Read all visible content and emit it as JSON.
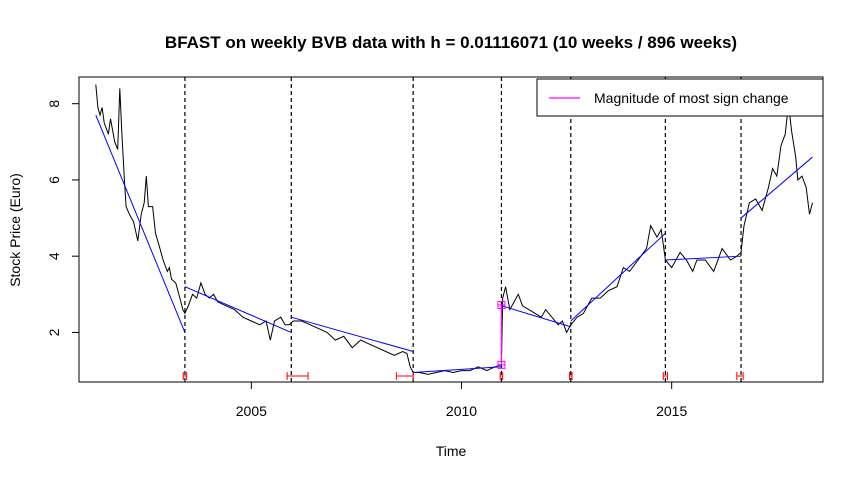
{
  "chart_data": {
    "type": "line",
    "title": "BFAST on weekly BVB data with h = 0.01116071 (10 weeks / 896 weeks)",
    "xlabel": "Time",
    "ylabel": "Stock Price (Euro)",
    "xlim": [
      2000.9,
      2018.6
    ],
    "ylim": [
      0.7,
      8.7
    ],
    "x_ticks": [
      2005,
      2010,
      2015
    ],
    "y_ticks": [
      2,
      4,
      6,
      8
    ],
    "legend": {
      "placement": "top-right",
      "entries": [
        {
          "label": "Magnitude of most sign change",
          "color": "#ff00ff"
        }
      ]
    },
    "colors": {
      "series": "#000000",
      "trend": "#0000ff",
      "breakpoint": "#000000",
      "confidence_interval": "#ff0000",
      "magnitude": "#ff00ff"
    },
    "series": [
      {
        "values": [
          [
            2001.3,
            8.5
          ],
          [
            2001.35,
            7.9
          ],
          [
            2001.4,
            7.7
          ],
          [
            2001.45,
            7.9
          ],
          [
            2001.5,
            7.5
          ],
          [
            2001.6,
            7.2
          ],
          [
            2001.65,
            7.6
          ],
          [
            2001.75,
            7.0
          ],
          [
            2001.82,
            6.8
          ],
          [
            2001.87,
            8.4
          ],
          [
            2001.92,
            7.2
          ],
          [
            2001.98,
            6.0
          ],
          [
            2002.02,
            5.3
          ],
          [
            2002.1,
            5.1
          ],
          [
            2002.2,
            4.9
          ],
          [
            2002.3,
            4.4
          ],
          [
            2002.38,
            5.1
          ],
          [
            2002.45,
            5.4
          ],
          [
            2002.5,
            6.1
          ],
          [
            2002.55,
            5.3
          ],
          [
            2002.65,
            5.3
          ],
          [
            2002.72,
            4.6
          ],
          [
            2002.8,
            4.3
          ],
          [
            2002.9,
            3.9
          ],
          [
            2003.0,
            3.6
          ],
          [
            2003.05,
            3.7
          ],
          [
            2003.1,
            3.4
          ],
          [
            2003.2,
            3.3
          ],
          [
            2003.3,
            2.9
          ],
          [
            2003.37,
            2.6
          ],
          [
            2003.42,
            2.5
          ],
          [
            2003.5,
            2.7
          ],
          [
            2003.6,
            3.0
          ],
          [
            2003.7,
            2.9
          ],
          [
            2003.8,
            3.3
          ],
          [
            2003.9,
            3.0
          ],
          [
            2004.0,
            2.9
          ],
          [
            2004.1,
            3.0
          ],
          [
            2004.2,
            2.8
          ],
          [
            2004.4,
            2.7
          ],
          [
            2004.6,
            2.6
          ],
          [
            2004.8,
            2.4
          ],
          [
            2005.0,
            2.3
          ],
          [
            2005.2,
            2.2
          ],
          [
            2005.35,
            2.3
          ],
          [
            2005.45,
            1.8
          ],
          [
            2005.55,
            2.3
          ],
          [
            2005.7,
            2.4
          ],
          [
            2005.8,
            2.2
          ],
          [
            2005.9,
            2.2
          ],
          [
            2006.0,
            2.3
          ],
          [
            2006.2,
            2.3
          ],
          [
            2006.4,
            2.2
          ],
          [
            2006.6,
            2.1
          ],
          [
            2006.8,
            2.0
          ],
          [
            2007.0,
            1.8
          ],
          [
            2007.2,
            1.9
          ],
          [
            2007.4,
            1.6
          ],
          [
            2007.6,
            1.8
          ],
          [
            2007.8,
            1.7
          ],
          [
            2008.0,
            1.6
          ],
          [
            2008.2,
            1.5
          ],
          [
            2008.4,
            1.4
          ],
          [
            2008.6,
            1.5
          ],
          [
            2008.7,
            1.45
          ],
          [
            2008.78,
            1.1
          ],
          [
            2008.85,
            0.95
          ],
          [
            2009.0,
            0.95
          ],
          [
            2009.2,
            0.9
          ],
          [
            2009.4,
            0.95
          ],
          [
            2009.6,
            1.0
          ],
          [
            2009.8,
            0.95
          ],
          [
            2010.0,
            1.0
          ],
          [
            2010.2,
            1.0
          ],
          [
            2010.4,
            1.1
          ],
          [
            2010.6,
            1.0
          ],
          [
            2010.8,
            1.1
          ],
          [
            2010.95,
            1.15
          ],
          [
            2010.98,
            2.9
          ],
          [
            2011.05,
            3.2
          ],
          [
            2011.15,
            2.6
          ],
          [
            2011.25,
            2.8
          ],
          [
            2011.35,
            3.0
          ],
          [
            2011.45,
            2.7
          ],
          [
            2011.6,
            2.6
          ],
          [
            2011.75,
            2.5
          ],
          [
            2011.9,
            2.4
          ],
          [
            2012.0,
            2.6
          ],
          [
            2012.15,
            2.4
          ],
          [
            2012.3,
            2.2
          ],
          [
            2012.4,
            2.3
          ],
          [
            2012.5,
            2.0
          ],
          [
            2012.6,
            2.2
          ],
          [
            2012.75,
            2.4
          ],
          [
            2012.9,
            2.5
          ],
          [
            2013.1,
            2.9
          ],
          [
            2013.3,
            2.9
          ],
          [
            2013.5,
            3.1
          ],
          [
            2013.7,
            3.2
          ],
          [
            2013.85,
            3.7
          ],
          [
            2014.0,
            3.6
          ],
          [
            2014.2,
            3.9
          ],
          [
            2014.4,
            4.2
          ],
          [
            2014.5,
            4.8
          ],
          [
            2014.65,
            4.5
          ],
          [
            2014.75,
            4.7
          ],
          [
            2014.85,
            3.9
          ],
          [
            2015.0,
            3.7
          ],
          [
            2015.2,
            4.1
          ],
          [
            2015.35,
            3.9
          ],
          [
            2015.5,
            3.6
          ],
          [
            2015.6,
            3.9
          ],
          [
            2015.8,
            3.9
          ],
          [
            2016.0,
            3.6
          ],
          [
            2016.2,
            4.2
          ],
          [
            2016.4,
            3.9
          ],
          [
            2016.55,
            4.0
          ],
          [
            2016.65,
            4.1
          ],
          [
            2016.72,
            4.8
          ],
          [
            2016.85,
            5.4
          ],
          [
            2017.0,
            5.5
          ],
          [
            2017.15,
            5.2
          ],
          [
            2017.3,
            5.8
          ],
          [
            2017.4,
            6.3
          ],
          [
            2017.5,
            6.1
          ],
          [
            2017.6,
            6.9
          ],
          [
            2017.7,
            7.2
          ],
          [
            2017.78,
            8.0
          ],
          [
            2017.85,
            7.3
          ],
          [
            2017.95,
            6.6
          ],
          [
            2018.0,
            6.0
          ],
          [
            2018.1,
            6.1
          ],
          [
            2018.2,
            5.8
          ],
          [
            2018.28,
            5.1
          ],
          [
            2018.35,
            5.4
          ]
        ]
      }
    ],
    "trend_segments": [
      [
        [
          2001.3,
          7.7
        ],
        [
          2003.42,
          2.0
        ]
      ],
      [
        [
          2003.42,
          3.2
        ],
        [
          2005.95,
          2.0
        ]
      ],
      [
        [
          2005.95,
          2.4
        ],
        [
          2008.85,
          1.5
        ]
      ],
      [
        [
          2008.85,
          0.95
        ],
        [
          2010.95,
          1.1
        ]
      ],
      [
        [
          2010.95,
          2.7
        ],
        [
          2012.6,
          2.15
        ]
      ],
      [
        [
          2012.6,
          2.3
        ],
        [
          2014.85,
          4.6
        ]
      ],
      [
        [
          2014.85,
          3.9
        ],
        [
          2016.65,
          4.0
        ]
      ],
      [
        [
          2016.65,
          5.0
        ],
        [
          2018.35,
          6.6
        ]
      ]
    ],
    "breakpoints": [
      2003.42,
      2005.95,
      2008.85,
      2010.95,
      2012.6,
      2014.85,
      2016.65
    ],
    "confidence_intervals": [
      [
        2003.38,
        2003.46
      ],
      [
        2005.85,
        2006.35
      ],
      [
        2008.45,
        2008.85
      ],
      [
        2010.92,
        2010.98
      ],
      [
        2012.57,
        2012.63
      ],
      [
        2014.8,
        2014.9
      ],
      [
        2016.55,
        2016.7
      ]
    ],
    "magnitude_change": {
      "x": 2010.95,
      "from": 1.15,
      "to": 2.72
    }
  }
}
